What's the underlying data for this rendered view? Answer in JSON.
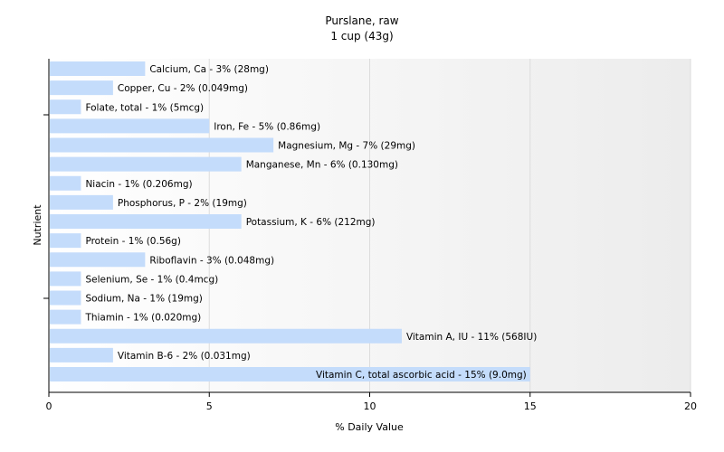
{
  "chart_data": {
    "type": "bar",
    "orientation": "horizontal",
    "title": "Purslane, raw",
    "subtitle": "1 cup (43g)",
    "xlabel": "% Daily Value",
    "ylabel": "Nutrient",
    "xlim": [
      0,
      20
    ],
    "xticks": [
      "0",
      "5",
      "10",
      "15",
      "20"
    ],
    "grid": "vertical",
    "bar_color": "#c4dcfb",
    "categories": [
      "Calcium, Ca",
      "Copper, Cu",
      "Folate, total",
      "Iron, Fe",
      "Magnesium, Mg",
      "Manganese, Mn",
      "Niacin",
      "Phosphorus, P",
      "Potassium, K",
      "Protein",
      "Riboflavin",
      "Selenium, Se",
      "Sodium, Na",
      "Thiamin",
      "Vitamin A, IU",
      "Vitamin B-6",
      "Vitamin C, total ascorbic acid"
    ],
    "values": [
      3,
      2,
      1,
      5,
      7,
      6,
      1,
      2,
      6,
      1,
      3,
      1,
      1,
      1,
      11,
      2,
      15
    ],
    "bar_labels": [
      "Calcium, Ca - 3% (28mg)",
      "Copper, Cu - 2% (0.049mg)",
      "Folate, total - 1% (5mcg)",
      "Iron, Fe - 5% (0.86mg)",
      "Magnesium, Mg - 7% (29mg)",
      "Manganese, Mn - 6% (0.130mg)",
      "Niacin - 1% (0.206mg)",
      "Phosphorus, P - 2% (19mg)",
      "Potassium, K - 6% (212mg)",
      "Protein - 1% (0.56g)",
      "Riboflavin - 3% (0.048mg)",
      "Selenium, Se - 1% (0.4mcg)",
      "Sodium, Na - 1% (19mg)",
      "Thiamin - 1% (0.020mg)",
      "Vitamin A, IU - 11% (568IU)",
      "Vitamin B-6 - 2% (0.031mg)",
      "Vitamin C, total ascorbic acid - 15% (9.0mg)"
    ]
  }
}
